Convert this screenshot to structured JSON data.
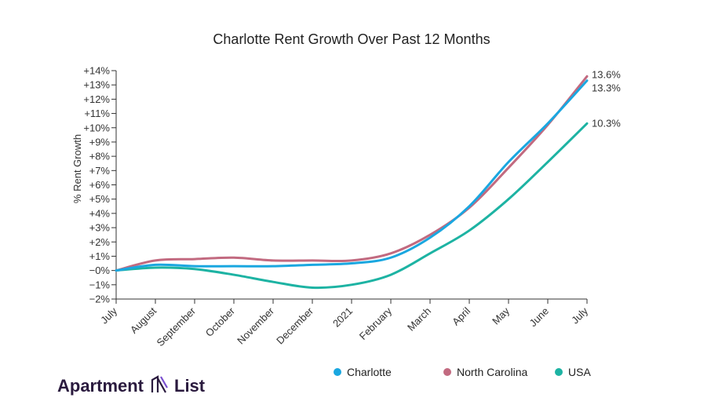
{
  "colors": {
    "charlotte": "#1aa7e0",
    "north_carolina": "#c26a80",
    "usa": "#1db3a3",
    "axis": "#333333",
    "logo": "#2a1a3e"
  },
  "logo": {
    "text_left": "Apartment",
    "text_right": "List",
    "icon": "apartment-list-logo-icon"
  },
  "chart_data": {
    "type": "line",
    "title": "Charlotte Rent Growth Over Past 12 Months",
    "xlabel": "",
    "ylabel": "% Rent Growth",
    "categories": [
      "July",
      "August",
      "September",
      "October",
      "November",
      "December",
      "2021",
      "February",
      "March",
      "April",
      "May",
      "June",
      "July"
    ],
    "y_ticks": [
      "−2%",
      "−1%",
      "−0%",
      "+1%",
      "+2%",
      "+3%",
      "+4%",
      "+5%",
      "+6%",
      "+7%",
      "+8%",
      "+9%",
      "+10%",
      "+11%",
      "+12%",
      "+13%",
      "+14%"
    ],
    "ylim": [
      -2,
      14
    ],
    "grid": false,
    "legend_position": "bottom-right",
    "series": [
      {
        "name": "Charlotte",
        "color_key": "charlotte",
        "end_label": "13.3%",
        "values": [
          0,
          0.4,
          0.3,
          0.3,
          0.3,
          0.4,
          0.5,
          0.9,
          2.3,
          4.5,
          7.6,
          10.3,
          13.3
        ]
      },
      {
        "name": "North Carolina",
        "color_key": "north_carolina",
        "end_label": "13.6%",
        "values": [
          0,
          0.7,
          0.8,
          0.9,
          0.7,
          0.7,
          0.7,
          1.2,
          2.5,
          4.4,
          7.2,
          10.2,
          13.6
        ]
      },
      {
        "name": "USA",
        "color_key": "usa",
        "end_label": "10.3%",
        "values": [
          0,
          0.2,
          0.1,
          -0.3,
          -0.8,
          -1.2,
          -1.0,
          -0.3,
          1.2,
          2.8,
          5.0,
          7.6,
          10.3
        ]
      }
    ]
  }
}
